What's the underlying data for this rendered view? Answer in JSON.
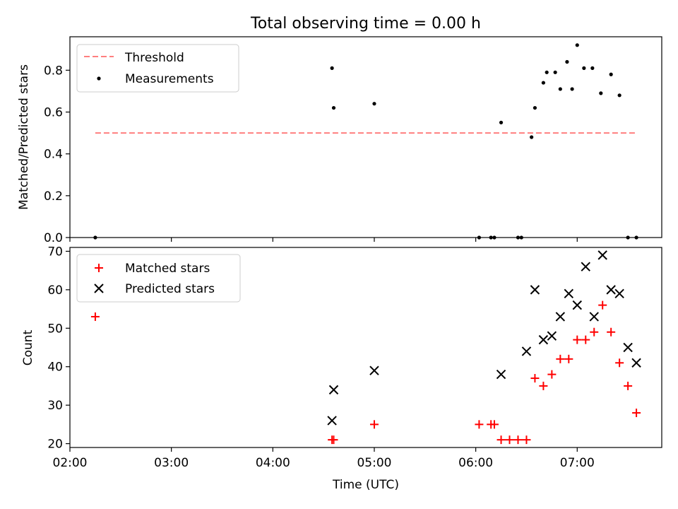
{
  "figure": {
    "title": "Total observing time = 0.00 h"
  },
  "chart_data": [
    {
      "type": "scatter",
      "panel": "top",
      "title": "Total observing time = 0.00 h",
      "xlabel": "",
      "ylabel": "Matched/Predicted stars",
      "xlim": [
        "02:00",
        "07:50"
      ],
      "ylim": [
        0,
        0.96
      ],
      "yticks": [
        "0.0",
        "0.2",
        "0.4",
        "0.6",
        "0.8"
      ],
      "legend": {
        "placement": "top-left",
        "entries": [
          "Threshold",
          "Measurements"
        ]
      },
      "series": [
        {
          "name": "Threshold",
          "style": "dashed-line",
          "color": "#ff7f7f",
          "x": [
            "02:15",
            "07:35"
          ],
          "y": [
            0.5,
            0.5
          ]
        },
        {
          "name": "Measurements",
          "style": "dot",
          "color": "#000000",
          "x": [
            "02:15",
            "04:35",
            "04:36",
            "05:00",
            "06:02",
            "06:09",
            "06:11",
            "06:15",
            "06:25",
            "06:27",
            "06:33",
            "06:35",
            "06:40",
            "06:42",
            "06:47",
            "06:50",
            "06:54",
            "06:57",
            "07:00",
            "07:04",
            "07:09",
            "07:14",
            "07:20",
            "07:25",
            "07:30",
            "07:35"
          ],
          "y": [
            0.0,
            0.81,
            0.62,
            0.64,
            0.0,
            0.0,
            0.0,
            0.55,
            0.0,
            0.0,
            0.48,
            0.62,
            0.74,
            0.79,
            0.79,
            0.71,
            0.84,
            0.71,
            0.92,
            0.81,
            0.81,
            0.69,
            0.78,
            0.68,
            0.0,
            0.0
          ]
        }
      ]
    },
    {
      "type": "scatter",
      "panel": "bottom",
      "xlabel": "Time (UTC)",
      "ylabel": "Count",
      "xlim": [
        "02:00",
        "07:50"
      ],
      "ylim": [
        19,
        71
      ],
      "xticks": [
        "02:00",
        "03:00",
        "04:00",
        "05:00",
        "06:00",
        "07:00"
      ],
      "yticks": [
        "20",
        "30",
        "40",
        "50",
        "60",
        "70"
      ],
      "legend": {
        "placement": "top-left",
        "entries": [
          "Matched stars",
          "Predicted stars"
        ]
      },
      "series": [
        {
          "name": "Matched stars",
          "marker": "plus",
          "color": "#ff0000",
          "x": [
            "02:15",
            "04:35",
            "04:36",
            "05:00",
            "06:02",
            "06:09",
            "06:11",
            "06:15",
            "06:20",
            "06:25",
            "06:30",
            "06:35",
            "06:40",
            "06:45",
            "06:50",
            "06:55",
            "07:00",
            "07:05",
            "07:10",
            "07:15",
            "07:20",
            "07:25",
            "07:30",
            "07:35"
          ],
          "y": [
            53,
            21,
            21,
            25,
            25,
            25,
            25,
            21,
            21,
            21,
            21,
            37,
            35,
            38,
            42,
            42,
            47,
            47,
            49,
            56,
            49,
            41,
            35,
            28
          ]
        },
        {
          "name": "Predicted stars",
          "marker": "x",
          "color": "#000000",
          "x": [
            "04:35",
            "04:36",
            "05:00",
            "06:15",
            "06:30",
            "06:35",
            "06:40",
            "06:45",
            "06:50",
            "06:55",
            "07:00",
            "07:05",
            "07:10",
            "07:15",
            "07:20",
            "07:25",
            "07:30",
            "07:35"
          ],
          "y": [
            26,
            34,
            39,
            38,
            44,
            60,
            47,
            48,
            53,
            59,
            56,
            66,
            53,
            69,
            60,
            59,
            45,
            41
          ]
        }
      ]
    }
  ]
}
